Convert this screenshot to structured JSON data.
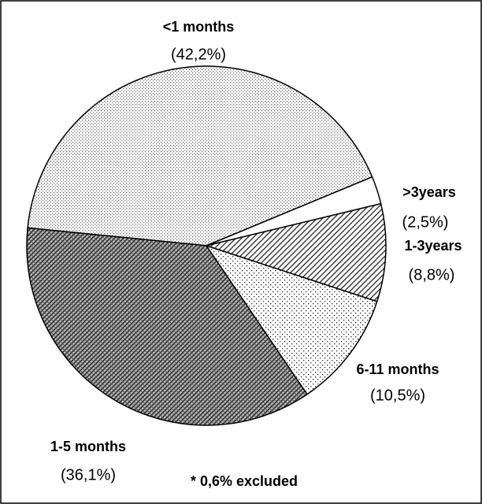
{
  "chart_data": {
    "type": "pie",
    "categories": [
      "<1 months",
      ">3years",
      "1-3years",
      "6-11 months",
      "1-5 months"
    ],
    "values": [
      42.2,
      2.5,
      8.8,
      10.5,
      36.1
    ],
    "value_labels": [
      "(42,2%)",
      "(2,5%)",
      "(8,8%)",
      "(10,5%)",
      "(36,1%)"
    ],
    "annotation": "* 0,6% excluded"
  }
}
